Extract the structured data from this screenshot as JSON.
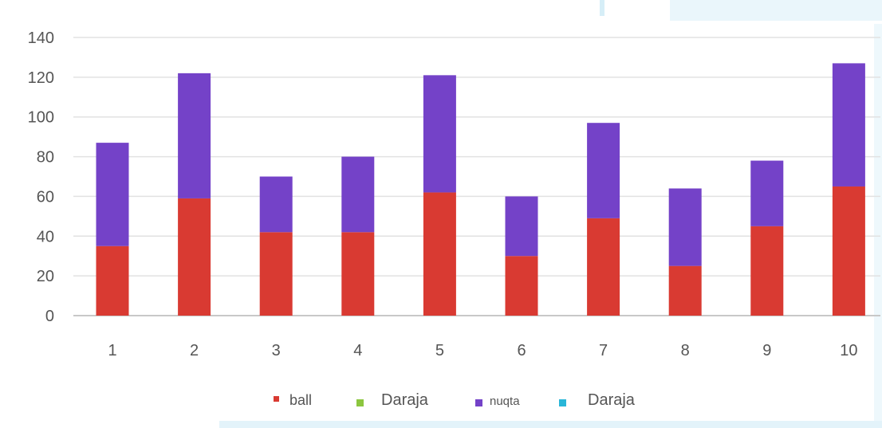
{
  "chart_data": {
    "type": "bar",
    "stacked": true,
    "categories": [
      "1",
      "2",
      "3",
      "4",
      "5",
      "6",
      "7",
      "8",
      "9",
      "10"
    ],
    "series": [
      {
        "name": "ball",
        "color": "#d93a32",
        "values": [
          35,
          59,
          42,
          42,
          62,
          30,
          49,
          25,
          45,
          65
        ]
      },
      {
        "name": "Daraja",
        "color": "#8cc63f",
        "values": [
          0,
          0,
          0,
          0,
          0,
          0,
          0,
          0,
          0,
          0
        ]
      },
      {
        "name": "nuqta",
        "color": "#7442c8",
        "values": [
          52,
          63,
          28,
          38,
          59,
          30,
          48,
          39,
          33,
          62
        ]
      },
      {
        "name": "Daraja",
        "color": "#29b6d8",
        "values": [
          0,
          0,
          0,
          0,
          0,
          0,
          0,
          0,
          0,
          0
        ]
      }
    ],
    "y_ticks": [
      "0",
      "20",
      "40",
      "60",
      "80",
      "100",
      "120",
      "140"
    ],
    "ylim": [
      0,
      140
    ],
    "grid": true,
    "legend_position": "bottom",
    "title": "",
    "xlabel": "",
    "ylabel": ""
  }
}
